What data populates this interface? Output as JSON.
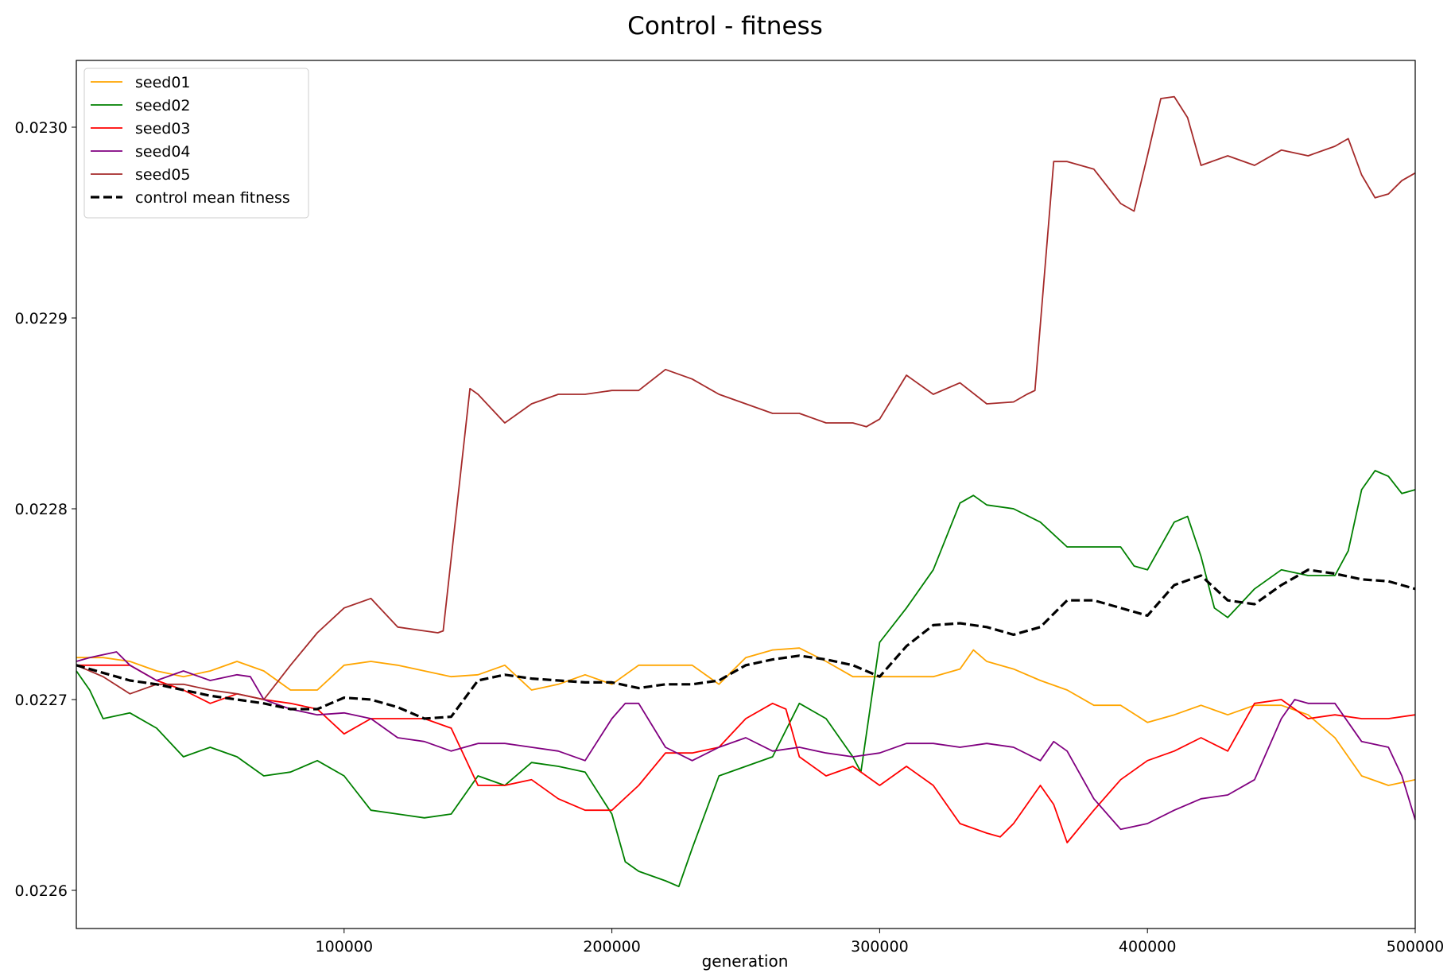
{
  "chart_data": {
    "type": "line",
    "title": "Control - fitness",
    "xlabel": "generation",
    "ylabel": "",
    "xlim": [
      0,
      500000
    ],
    "ylim": [
      0.02258,
      0.023035
    ],
    "xticks": [
      100000,
      200000,
      300000,
      400000,
      500000
    ],
    "xtick_labels": [
      "100000",
      "200000",
      "300000",
      "400000",
      "500000"
    ],
    "yticks": [
      0.0226,
      0.0227,
      0.0228,
      0.0229,
      0.023
    ],
    "ytick_labels": [
      "0.0226",
      "0.0227",
      "0.0228",
      "0.0229",
      "0.0230"
    ],
    "grid": false,
    "legend_position": "upper-left",
    "series": [
      {
        "name": "seed01",
        "color": "#ffa500",
        "dash": false,
        "x": [
          0,
          10000,
          20000,
          30000,
          40000,
          50000,
          60000,
          70000,
          80000,
          90000,
          100000,
          110000,
          120000,
          130000,
          140000,
          150000,
          160000,
          170000,
          180000,
          190000,
          200000,
          210000,
          220000,
          230000,
          240000,
          250000,
          260000,
          270000,
          280000,
          290000,
          300000,
          310000,
          320000,
          330000,
          335000,
          340000,
          350000,
          360000,
          370000,
          380000,
          390000,
          400000,
          410000,
          420000,
          430000,
          440000,
          450000,
          460000,
          470000,
          480000,
          490000,
          500000
        ],
        "y": [
          0.022722,
          0.022722,
          0.02272,
          0.022715,
          0.022712,
          0.022715,
          0.02272,
          0.022715,
          0.022705,
          0.022705,
          0.022718,
          0.02272,
          0.022718,
          0.022715,
          0.022712,
          0.022713,
          0.022718,
          0.022705,
          0.022708,
          0.022713,
          0.022708,
          0.022718,
          0.022718,
          0.022718,
          0.022708,
          0.022722,
          0.022726,
          0.022727,
          0.02272,
          0.022712,
          0.022712,
          0.022712,
          0.022712,
          0.022716,
          0.022726,
          0.02272,
          0.022716,
          0.02271,
          0.022705,
          0.022697,
          0.022697,
          0.022688,
          0.022692,
          0.022697,
          0.022692,
          0.022697,
          0.022697,
          0.022692,
          0.02268,
          0.02266,
          0.022655,
          0.022658
        ]
      },
      {
        "name": "seed02",
        "color": "#008000",
        "dash": false,
        "x": [
          0,
          5000,
          10000,
          20000,
          30000,
          40000,
          50000,
          60000,
          70000,
          80000,
          90000,
          100000,
          110000,
          120000,
          130000,
          140000,
          150000,
          160000,
          170000,
          180000,
          190000,
          200000,
          205000,
          210000,
          220000,
          225000,
          230000,
          240000,
          250000,
          260000,
          270000,
          280000,
          290000,
          293000,
          300000,
          310000,
          320000,
          330000,
          335000,
          340000,
          350000,
          360000,
          370000,
          380000,
          390000,
          395000,
          400000,
          410000,
          415000,
          420000,
          425000,
          430000,
          440000,
          450000,
          460000,
          470000,
          475000,
          480000,
          485000,
          490000,
          495000,
          500000
        ],
        "y": [
          0.022715,
          0.022705,
          0.02269,
          0.022693,
          0.022685,
          0.02267,
          0.022675,
          0.02267,
          0.02266,
          0.022662,
          0.022668,
          0.02266,
          0.022642,
          0.02264,
          0.022638,
          0.02264,
          0.02266,
          0.022655,
          0.022667,
          0.022665,
          0.022662,
          0.02264,
          0.022615,
          0.02261,
          0.022605,
          0.022602,
          0.022622,
          0.02266,
          0.022665,
          0.02267,
          0.022698,
          0.02269,
          0.02267,
          0.022662,
          0.02273,
          0.022748,
          0.022768,
          0.022803,
          0.022807,
          0.022802,
          0.0228,
          0.022793,
          0.02278,
          0.02278,
          0.02278,
          0.02277,
          0.022768,
          0.022793,
          0.022796,
          0.022775,
          0.022748,
          0.022743,
          0.022758,
          0.022768,
          0.022765,
          0.022765,
          0.022778,
          0.02281,
          0.02282,
          0.022817,
          0.022808,
          0.02281
        ]
      },
      {
        "name": "seed03",
        "color": "#ff0000",
        "dash": false,
        "x": [
          0,
          10000,
          20000,
          30000,
          40000,
          50000,
          60000,
          70000,
          80000,
          90000,
          100000,
          110000,
          120000,
          130000,
          140000,
          150000,
          160000,
          170000,
          180000,
          190000,
          200000,
          210000,
          220000,
          230000,
          240000,
          250000,
          260000,
          265000,
          270000,
          280000,
          290000,
          300000,
          310000,
          320000,
          330000,
          340000,
          345000,
          350000,
          360000,
          365000,
          370000,
          380000,
          390000,
          400000,
          410000,
          420000,
          430000,
          440000,
          450000,
          460000,
          470000,
          480000,
          490000,
          500000
        ],
        "y": [
          0.022718,
          0.022718,
          0.022718,
          0.02271,
          0.022705,
          0.022698,
          0.022703,
          0.0227,
          0.022698,
          0.022695,
          0.022682,
          0.02269,
          0.02269,
          0.02269,
          0.022685,
          0.022655,
          0.022655,
          0.022658,
          0.022648,
          0.022642,
          0.022642,
          0.022655,
          0.022672,
          0.022672,
          0.022675,
          0.02269,
          0.022698,
          0.022695,
          0.02267,
          0.02266,
          0.022665,
          0.022655,
          0.022665,
          0.022655,
          0.022635,
          0.02263,
          0.022628,
          0.022635,
          0.022655,
          0.022645,
          0.022625,
          0.022642,
          0.022658,
          0.022668,
          0.022673,
          0.02268,
          0.022673,
          0.022698,
          0.0227,
          0.02269,
          0.022692,
          0.02269,
          0.02269,
          0.022692
        ]
      },
      {
        "name": "seed04",
        "color": "#800080",
        "dash": false,
        "x": [
          0,
          5000,
          15000,
          20000,
          30000,
          40000,
          50000,
          60000,
          65000,
          70000,
          80000,
          90000,
          100000,
          110000,
          120000,
          130000,
          140000,
          150000,
          160000,
          170000,
          180000,
          190000,
          200000,
          205000,
          210000,
          220000,
          230000,
          240000,
          250000,
          260000,
          270000,
          280000,
          290000,
          300000,
          310000,
          320000,
          330000,
          340000,
          350000,
          360000,
          365000,
          370000,
          380000,
          390000,
          400000,
          410000,
          420000,
          430000,
          440000,
          450000,
          455000,
          460000,
          470000,
          480000,
          490000,
          495000,
          500000
        ],
        "y": [
          0.02272,
          0.022722,
          0.022725,
          0.022718,
          0.02271,
          0.022715,
          0.02271,
          0.022713,
          0.022712,
          0.0227,
          0.022695,
          0.022692,
          0.022693,
          0.02269,
          0.02268,
          0.022678,
          0.022673,
          0.022677,
          0.022677,
          0.022675,
          0.022673,
          0.022668,
          0.02269,
          0.022698,
          0.022698,
          0.022675,
          0.022668,
          0.022675,
          0.02268,
          0.022673,
          0.022675,
          0.022672,
          0.02267,
          0.022672,
          0.022677,
          0.022677,
          0.022675,
          0.022677,
          0.022675,
          0.022668,
          0.022678,
          0.022673,
          0.022648,
          0.022632,
          0.022635,
          0.022642,
          0.022648,
          0.02265,
          0.022658,
          0.02269,
          0.0227,
          0.022698,
          0.022698,
          0.022678,
          0.022675,
          0.02266,
          0.022637
        ]
      },
      {
        "name": "seed05",
        "color": "#a52a2a",
        "dash": false,
        "x": [
          0,
          10000,
          20000,
          30000,
          40000,
          50000,
          60000,
          70000,
          80000,
          90000,
          100000,
          110000,
          120000,
          130000,
          135000,
          137000,
          147000,
          150000,
          160000,
          170000,
          180000,
          190000,
          200000,
          210000,
          220000,
          230000,
          240000,
          250000,
          260000,
          270000,
          280000,
          290000,
          295000,
          300000,
          310000,
          320000,
          330000,
          340000,
          350000,
          355000,
          358000,
          365000,
          370000,
          380000,
          390000,
          395000,
          400000,
          405000,
          410000,
          415000,
          420000,
          430000,
          440000,
          450000,
          460000,
          470000,
          475000,
          480000,
          485000,
          490000,
          495000,
          500000
        ],
        "y": [
          0.022718,
          0.022712,
          0.022703,
          0.022708,
          0.022708,
          0.022705,
          0.022703,
          0.0227,
          0.022718,
          0.022735,
          0.022748,
          0.022753,
          0.022738,
          0.022736,
          0.022735,
          0.022736,
          0.022863,
          0.02286,
          0.022845,
          0.022855,
          0.02286,
          0.02286,
          0.022862,
          0.022862,
          0.022873,
          0.022868,
          0.02286,
          0.022855,
          0.02285,
          0.02285,
          0.022845,
          0.022845,
          0.022843,
          0.022847,
          0.02287,
          0.02286,
          0.022866,
          0.022855,
          0.022856,
          0.02286,
          0.022862,
          0.022982,
          0.022982,
          0.022978,
          0.02296,
          0.022956,
          0.022985,
          0.023015,
          0.023016,
          0.023005,
          0.02298,
          0.022985,
          0.02298,
          0.022988,
          0.022985,
          0.02299,
          0.022994,
          0.022975,
          0.022963,
          0.022965,
          0.022972,
          0.022976
        ]
      },
      {
        "name": "control mean fitness",
        "color": "#000000",
        "dash": true,
        "x": [
          0,
          10000,
          20000,
          30000,
          40000,
          50000,
          60000,
          70000,
          80000,
          90000,
          100000,
          110000,
          120000,
          130000,
          140000,
          150000,
          160000,
          170000,
          180000,
          190000,
          200000,
          210000,
          220000,
          230000,
          240000,
          250000,
          260000,
          270000,
          280000,
          290000,
          300000,
          310000,
          320000,
          330000,
          340000,
          350000,
          360000,
          370000,
          380000,
          390000,
          400000,
          410000,
          420000,
          430000,
          440000,
          450000,
          460000,
          470000,
          480000,
          490000,
          500000
        ],
        "y": [
          0.022718,
          0.022714,
          0.02271,
          0.022708,
          0.022705,
          0.022702,
          0.0227,
          0.022698,
          0.022695,
          0.022695,
          0.022701,
          0.0227,
          0.022696,
          0.02269,
          0.022691,
          0.02271,
          0.022713,
          0.022711,
          0.02271,
          0.022709,
          0.022709,
          0.022706,
          0.022708,
          0.022708,
          0.02271,
          0.022718,
          0.022721,
          0.022723,
          0.022721,
          0.022718,
          0.022712,
          0.022728,
          0.022739,
          0.02274,
          0.022738,
          0.022734,
          0.022738,
          0.022752,
          0.022752,
          0.022748,
          0.022744,
          0.02276,
          0.022765,
          0.022752,
          0.02275,
          0.02276,
          0.022768,
          0.022766,
          0.022763,
          0.022762,
          0.022758
        ]
      }
    ]
  }
}
